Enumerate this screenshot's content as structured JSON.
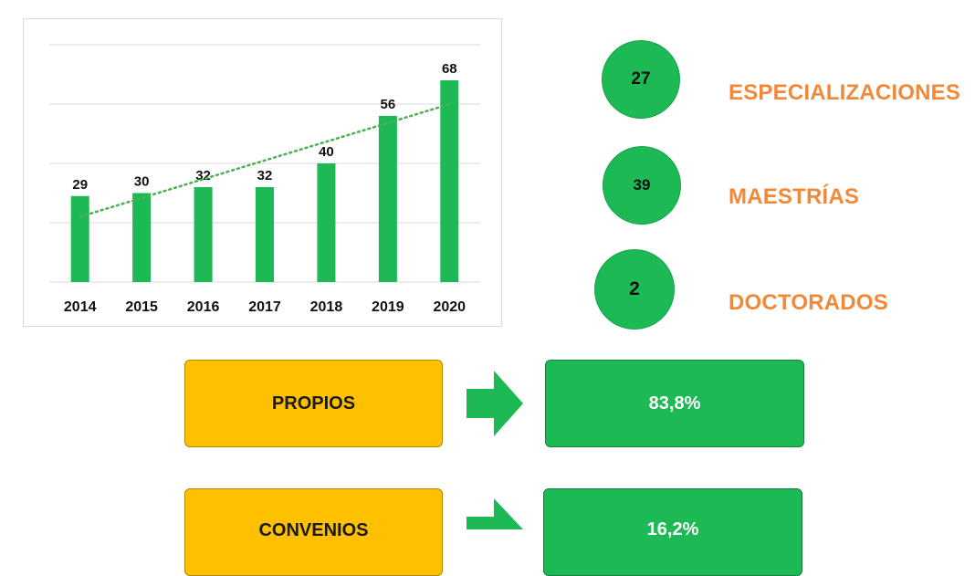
{
  "colors": {
    "bar": "#1db954",
    "trend": "#4caf50",
    "accent_orange": "#f0893a",
    "yellow_box": "#ffc000",
    "green_box": "#1db954"
  },
  "chart_data": {
    "type": "bar",
    "categories": [
      "2014",
      "2015",
      "2016",
      "2017",
      "2018",
      "2019",
      "2020"
    ],
    "values": [
      29,
      30,
      32,
      32,
      40,
      56,
      68
    ],
    "ylim": [
      0,
      80
    ],
    "grid": true,
    "trendline": "linear dotted",
    "title": "",
    "xlabel": "",
    "ylabel": ""
  },
  "levels": [
    {
      "count": "27",
      "label": "ESPECIALIZACIONES"
    },
    {
      "count": "39",
      "label": "MAESTRÍAS"
    },
    {
      "count": "2",
      "label": "DOCTORADOS"
    }
  ],
  "flows": [
    {
      "source": "PROPIOS",
      "result": "83,8%"
    },
    {
      "source": "CONVENIOS",
      "result": "16,2%"
    }
  ]
}
